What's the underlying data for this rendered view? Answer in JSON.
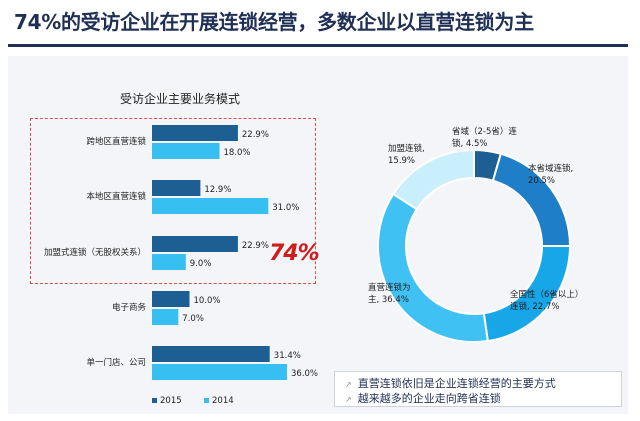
{
  "headline": "74%的受访企业在开展连锁经营，多数企业以直营连锁为主",
  "highlight": "74%",
  "notes": [
    "直营连锁依旧是企业连锁经营的主要方式",
    "越来越多的企业走向跨省连锁"
  ],
  "colors": {
    "series_2015": "#1d5f93",
    "series_2014": "#36bff0",
    "highlight": "#d01c1c",
    "headline": "#1f2f55"
  },
  "chart_data": [
    {
      "type": "bar",
      "title": "受访企业主要业务模式",
      "categories": [
        "跨地区直营连锁",
        "本地区直营连锁",
        "加盟式连锁（无股权关系）",
        "电子商务",
        "单一门店、公司"
      ],
      "series": [
        {
          "name": "2015",
          "values": [
            22.9,
            12.9,
            22.9,
            10.0,
            31.4
          ],
          "labels": [
            "22.9%",
            "12.9%",
            "22.9%",
            "10.0%",
            "31.4%"
          ]
        },
        {
          "name": "2014",
          "values": [
            18.0,
            31.0,
            9.0,
            7.0,
            36.0
          ],
          "labels": [
            "18.0%",
            "31.0%",
            "9.0%",
            "7.0%",
            "36.0%"
          ]
        }
      ],
      "xlim": [
        0,
        40
      ],
      "grid": false,
      "legend": "bottom"
    },
    {
      "type": "pie",
      "donut": true,
      "slices": [
        {
          "name": "省域（2-5省）连锁",
          "value": 4.5,
          "label_lines": [
            "省域（2-5省）连",
            "锁, 4.5%"
          ],
          "color": "#1d5f93"
        },
        {
          "name": "本省域连锁",
          "value": 20.5,
          "label_lines": [
            "本省域连锁,",
            "20.5%"
          ],
          "color": "#1e7ec8"
        },
        {
          "name": "全国性（6省以上）连锁",
          "value": 22.7,
          "label_lines": [
            "全国性（6省以上）",
            "连锁, 22.7%"
          ],
          "color": "#17a6e8"
        },
        {
          "name": "直营连锁为主",
          "value": 36.4,
          "label_lines": [
            "直营连锁为",
            "主, 36.4%"
          ],
          "color": "#3fc1f3"
        },
        {
          "name": "加盟连锁",
          "value": 15.9,
          "label_lines": [
            "加盟连锁,",
            "15.9%"
          ],
          "color": "#c9eefc"
        }
      ]
    }
  ]
}
